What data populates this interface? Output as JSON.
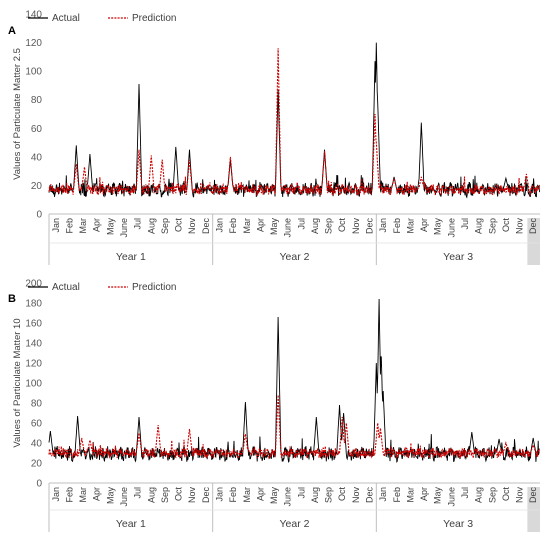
{
  "chart_data": [
    {
      "panel_label": "A",
      "type": "line",
      "ylabel": "Values of Particulate Matter 2.5",
      "ylim": [
        0,
        140
      ],
      "yticks": [
        0,
        20,
        40,
        60,
        80,
        100,
        120,
        140
      ],
      "ytick_labels": [
        "0",
        "20",
        "40",
        "60",
        "80",
        "100",
        "120",
        "140"
      ],
      "month_ticks": [
        "Jan",
        "Feb",
        "Mar",
        "Apr",
        "May",
        "June",
        "Jul",
        "Aug",
        "Sep",
        "Oct",
        "Nov",
        "Dec",
        "Jan",
        "Feb",
        "Mar",
        "Apr",
        "May",
        "June",
        "Jul",
        "Aug",
        "Sep",
        "Oct",
        "Nov",
        "Dec",
        "Jan",
        "Feb",
        "Mar",
        "Apr",
        "May",
        "June",
        "Jul",
        "Aug",
        "Sep",
        "Oct",
        "Nov",
        "Dec"
      ],
      "year_labels": [
        "Year 1",
        "Year 2",
        "Year 3"
      ],
      "legend": [
        "Actual",
        "Prediction"
      ],
      "legend_position": "top-left",
      "grid": false,
      "series": [
        {
          "name": "Actual",
          "color": "#000000",
          "baseline": 17,
          "noise": 4,
          "peaks": [
            [
              2.0,
              48
            ],
            [
              3.0,
              42
            ],
            [
              6.6,
              91
            ],
            [
              9.3,
              47
            ],
            [
              10.3,
              45
            ],
            [
              13.3,
              38
            ],
            [
              16.8,
              87
            ],
            [
              20.2,
              45
            ],
            [
              23.9,
              107
            ],
            [
              24.0,
              120
            ],
            [
              24.1,
              78
            ],
            [
              25.3,
              26
            ],
            [
              27.3,
              64
            ],
            [
              33.5,
              25
            ]
          ]
        },
        {
          "name": "Prediction",
          "color": "#cc0000",
          "baseline": 17,
          "noise": 3,
          "peaks": [
            [
              2.0,
              35
            ],
            [
              2.6,
              33
            ],
            [
              6.6,
              45
            ],
            [
              7.5,
              41
            ],
            [
              8.3,
              38
            ],
            [
              10.3,
              38
            ],
            [
              13.3,
              40
            ],
            [
              16.8,
              116
            ],
            [
              20.2,
              44
            ],
            [
              23.9,
              70
            ],
            [
              24.0,
              50
            ],
            [
              25.3,
              25
            ],
            [
              27.3,
              26
            ],
            [
              35.0,
              28
            ]
          ]
        }
      ]
    },
    {
      "panel_label": "B",
      "type": "line",
      "ylabel": "Values of Particulate Matter 10",
      "ylim": [
        0,
        200
      ],
      "yticks": [
        0,
        20,
        40,
        60,
        80,
        100,
        120,
        140,
        160,
        180,
        200
      ],
      "ytick_labels": [
        "0",
        "20",
        "40",
        "60",
        "80",
        "100",
        "120",
        "140",
        "160",
        "180",
        "200"
      ],
      "month_ticks": [
        "Jan",
        "Feb",
        "Mar",
        "Apr",
        "May",
        "June",
        "Jul",
        "Aug",
        "Sep",
        "Oct",
        "Nov",
        "Dec",
        "Jan",
        "Feb",
        "Mar",
        "Apr",
        "May",
        "June",
        "Jul",
        "Aug",
        "Sep",
        "Oct",
        "Nov",
        "Dec",
        "Jan",
        "Feb",
        "Mar",
        "Apr",
        "May",
        "June",
        "Jul",
        "Aug",
        "Sep",
        "Oct",
        "Nov",
        "Dec"
      ],
      "year_labels": [
        "Year 1",
        "Year 2",
        "Year 3"
      ],
      "legend": [
        "Actual",
        "Prediction"
      ],
      "legend_position": "top-left",
      "grid": false,
      "series": [
        {
          "name": "Actual",
          "color": "#000000",
          "baseline": 29,
          "noise": 6,
          "peaks": [
            [
              0.1,
              52
            ],
            [
              2.1,
              67
            ],
            [
              6.6,
              66
            ],
            [
              14.4,
              81
            ],
            [
              16.8,
              166
            ],
            [
              19.6,
              66
            ],
            [
              21.3,
              78
            ],
            [
              21.6,
              70
            ],
            [
              24.0,
              120
            ],
            [
              24.2,
              184
            ],
            [
              24.35,
              135
            ],
            [
              24.5,
              92
            ],
            [
              31.0,
              51
            ],
            [
              33.0,
              44
            ],
            [
              35.5,
              45
            ]
          ]
        },
        {
          "name": "Prediction",
          "color": "#cc0000",
          "baseline": 30,
          "noise": 4,
          "peaks": [
            [
              2.4,
              45
            ],
            [
              3.0,
              43
            ],
            [
              6.6,
              50
            ],
            [
              8.0,
              58
            ],
            [
              10.3,
              54
            ],
            [
              14.4,
              49
            ],
            [
              16.8,
              88
            ],
            [
              21.5,
              66
            ],
            [
              21.8,
              60
            ],
            [
              24.1,
              60
            ],
            [
              24.3,
              55
            ],
            [
              33.5,
              40
            ],
            [
              35.5,
              38
            ]
          ]
        }
      ]
    }
  ]
}
